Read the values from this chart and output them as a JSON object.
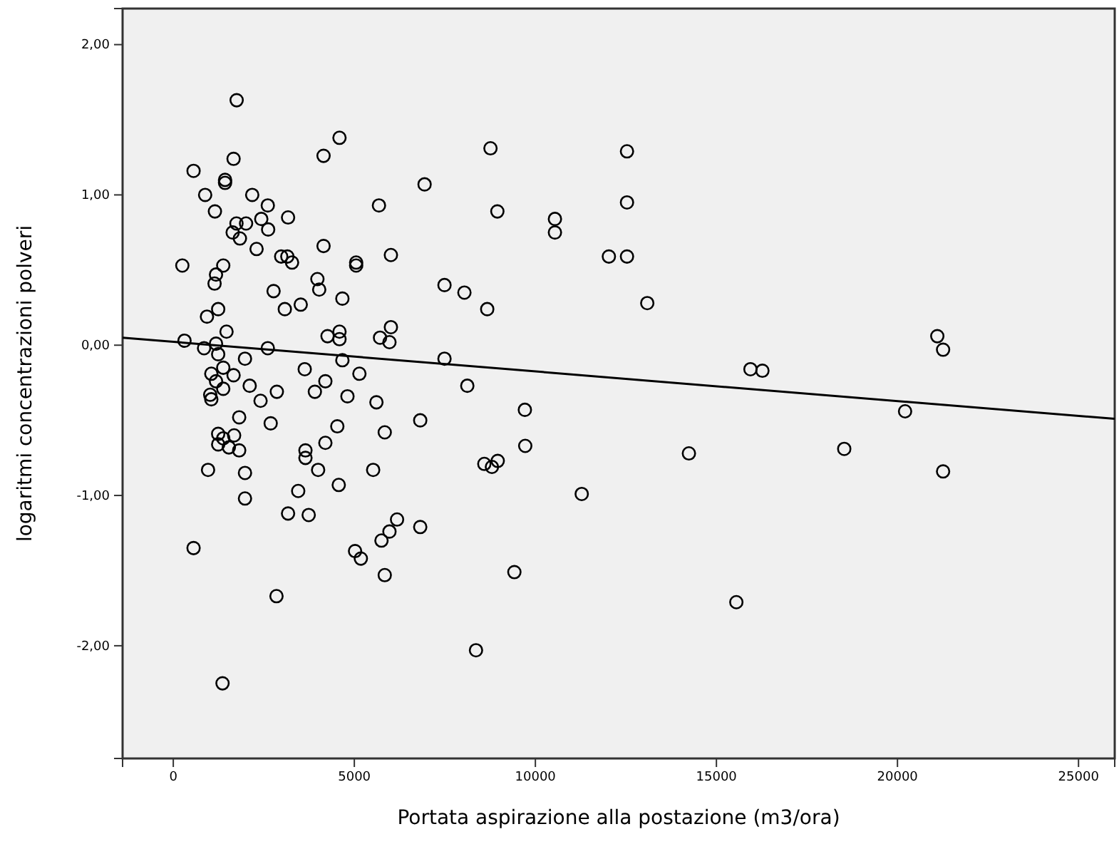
{
  "chart_data": {
    "type": "scatter",
    "xlabel": "Portata aspirazione alla postazione (m3/ora)",
    "ylabel": "logaritmi concentrazioni polveri",
    "xlim": [
      -1400,
      26000
    ],
    "xticks": [
      0,
      5000,
      10000,
      15000,
      20000,
      25000
    ],
    "ylim": [
      -2.75,
      2.24
    ],
    "yticks": [
      {
        "value": -2,
        "label": "-2,00"
      },
      {
        "value": -1,
        "label": "-1,00"
      },
      {
        "value": 0,
        "label": "0,00"
      },
      {
        "value": 1,
        "label": "1,00"
      },
      {
        "value": 2,
        "label": "2,00"
      }
    ],
    "grid": false,
    "series": [
      {
        "marker": "circle",
        "color": "#000000",
        "x": [
          1750,
          4590,
          8760,
          12530,
          1665,
          4150,
          560,
          1430,
          1430,
          6940,
          880,
          2180,
          2610,
          1150,
          5680,
          8950,
          10540,
          10540,
          12530,
          3170,
          2430,
          1745,
          2010,
          2620,
          1640,
          1840,
          2300,
          4150,
          6010,
          12030,
          12530,
          2980,
          3150,
          3280,
          5050,
          5050,
          250,
          1380,
          1180,
          1140,
          3980,
          4030,
          13090,
          2770,
          7490,
          8040,
          8670,
          4670,
          3080,
          3520,
          1240,
          930,
          6010,
          5710,
          5970,
          1470,
          4590,
          4260,
          4590,
          310,
          850,
          1180,
          2610,
          1240,
          7490,
          4670,
          1980,
          1380,
          1665,
          1050,
          1180,
          3630,
          5140,
          4200,
          3910,
          2110,
          2860,
          2410,
          1380,
          1020,
          1050,
          8120,
          4810,
          5610,
          9710,
          15940,
          16270,
          21100,
          21260,
          20210,
          1820,
          2690,
          4530,
          6820,
          5840,
          1240,
          1680,
          1380,
          1240,
          1535,
          1820,
          4200,
          3650,
          3650,
          9720,
          960,
          1980,
          4000,
          5520,
          4570,
          8590,
          8800,
          8960,
          11280,
          1980,
          3450,
          3170,
          3740,
          6180,
          5970,
          5750,
          6820,
          5020,
          5180,
          560,
          5840,
          9420,
          2850,
          8360,
          1360,
          14240,
          18530,
          21260,
          15550
        ],
        "values": [
          1.63,
          1.38,
          1.31,
          1.29,
          1.24,
          1.26,
          1.16,
          1.1,
          1.08,
          1.07,
          1.0,
          1.0,
          0.93,
          0.89,
          0.93,
          0.89,
          0.84,
          0.75,
          0.95,
          0.85,
          0.84,
          0.81,
          0.81,
          0.77,
          0.75,
          0.71,
          0.64,
          0.66,
          0.6,
          0.59,
          0.59,
          0.59,
          0.59,
          0.55,
          0.55,
          0.53,
          0.53,
          0.53,
          0.47,
          0.41,
          0.44,
          0.37,
          0.28,
          0.36,
          0.4,
          0.35,
          0.24,
          0.31,
          0.24,
          0.27,
          0.24,
          0.19,
          0.12,
          0.05,
          0.02,
          0.09,
          0.09,
          0.06,
          0.04,
          0.03,
          -0.02,
          0.01,
          -0.02,
          -0.06,
          -0.09,
          -0.1,
          -0.09,
          -0.15,
          -0.2,
          -0.19,
          -0.24,
          -0.16,
          -0.19,
          -0.24,
          -0.31,
          -0.27,
          -0.31,
          -0.37,
          -0.29,
          -0.33,
          -0.36,
          -0.27,
          -0.34,
          -0.38,
          -0.43,
          -0.16,
          -0.17,
          0.06,
          -0.03,
          -0.44,
          -0.48,
          -0.52,
          -0.54,
          -0.5,
          -0.58,
          -0.59,
          -0.6,
          -0.62,
          -0.66,
          -0.68,
          -0.7,
          -0.65,
          -0.7,
          -0.75,
          -0.67,
          -0.83,
          -0.85,
          -0.83,
          -0.83,
          -0.93,
          -0.79,
          -0.81,
          -0.77,
          -0.99,
          -1.02,
          -0.97,
          -1.12,
          -1.13,
          -1.16,
          -1.24,
          -1.3,
          -1.21,
          -1.37,
          -1.42,
          -1.35,
          -1.53,
          -1.51,
          -1.67,
          -2.03,
          -2.25,
          -0.72,
          -0.69,
          -0.84,
          -1.71
        ]
      },
      {
        "type": "line",
        "color": "#000000",
        "line_style": "solid",
        "x": [
          -1400,
          26000
        ],
        "values": [
          0.05,
          -0.49
        ]
      }
    ]
  }
}
